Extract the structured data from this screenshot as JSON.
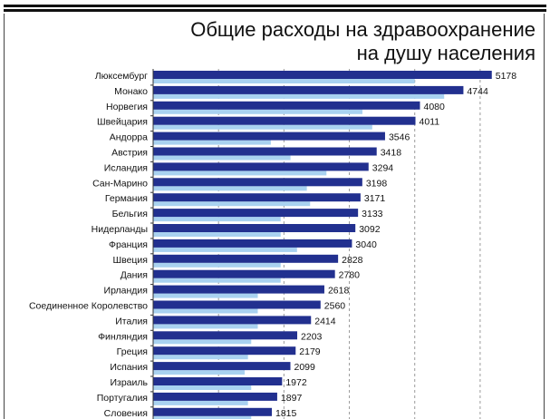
{
  "chart_data": {
    "type": "bar",
    "orientation": "horizontal",
    "title_lines": [
      "Общие расходы на здравоохранение",
      "на душу населения"
    ],
    "categories": [
      "Люксембург",
      "Монако",
      "Норвегия",
      "Швейцария",
      "Андорра",
      "Австрия",
      "Исландия",
      "Сан-Марино",
      "Германия",
      "Бельгия",
      "Нидерланды",
      "Франция",
      "Швеция",
      "Дания",
      "Ирландия",
      "Соединенное Королевство",
      "Италия",
      "Финляндия",
      "Греция",
      "Испания",
      "Израиль",
      "Португалия",
      "Словения"
    ],
    "series": [
      {
        "values": [
          5178,
          4744,
          4080,
          4011,
          3546,
          3418,
          3294,
          3198,
          3171,
          3133,
          3092,
          3040,
          2828,
          2780,
          2618,
          2560,
          2414,
          2203,
          2179,
          2099,
          1972,
          1897,
          1815
        ],
        "color": "#22308f",
        "data_labels": true
      },
      {
        "values": [
          4000,
          4450,
          3200,
          3350,
          1800,
          2100,
          2650,
          2350,
          2400,
          1950,
          1950,
          2200,
          1950,
          1950,
          1600,
          1600,
          1600,
          1500,
          1450,
          1400,
          1500,
          1450,
          1500
        ],
        "color": "#a9d2f0",
        "data_labels": false
      }
    ],
    "xlim": [
      0,
      5500
    ],
    "grid_values": [
      1000,
      2000,
      3000,
      4000,
      5000
    ],
    "grid": true,
    "legend": "none"
  }
}
